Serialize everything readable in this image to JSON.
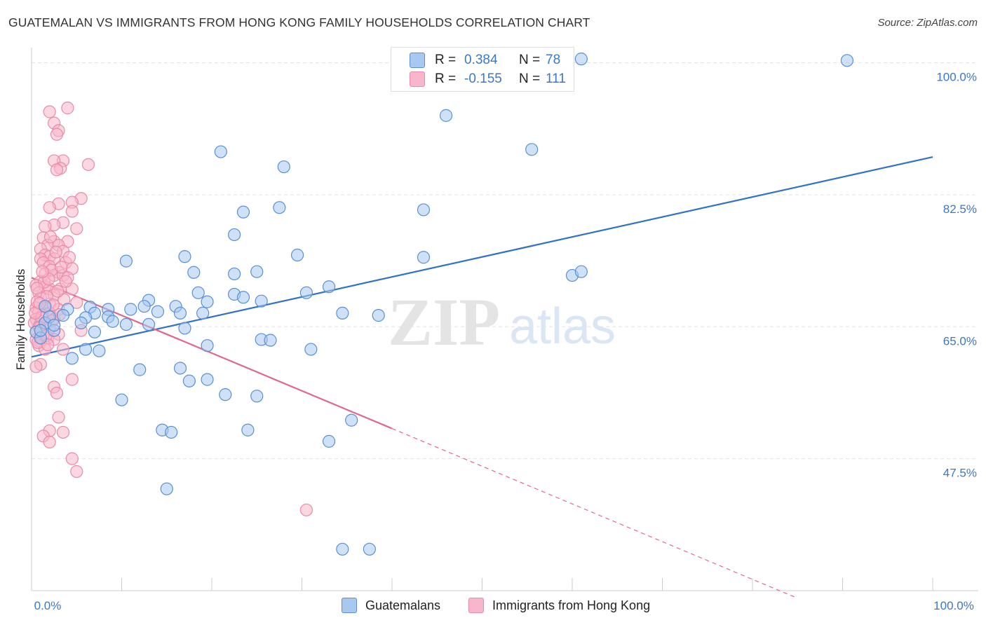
{
  "header": {
    "title": "GUATEMALAN VS IMMIGRANTS FROM HONG KONG FAMILY HOUSEHOLDS CORRELATION CHART",
    "source": "Source: ZipAtlas.com"
  },
  "watermark": {
    "zip": "ZIP",
    "atlas": "atlas"
  },
  "legend_top": {
    "rows": [
      {
        "r_label": "R =",
        "r_value": "0.384",
        "n_label": "N =",
        "n_value": "78"
      },
      {
        "r_label": "R =",
        "r_value": "-0.155",
        "n_label": "N =",
        "n_value": "111"
      }
    ]
  },
  "chart_data": {
    "type": "scatter",
    "ylabel": "Family Households",
    "xlim": [
      0,
      100
    ],
    "ylim": [
      30,
      102
    ],
    "x_tick_labels": [
      "0.0%",
      "100.0%"
    ],
    "y_ticks": [
      47.5,
      65.0,
      82.5,
      100.0
    ],
    "y_tick_labels": [
      "47.5%",
      "65.0%",
      "82.5%",
      "100.0%"
    ],
    "grid": "horizontal dashed",
    "legend_position": "bottom",
    "colors": {
      "blue_fill": "#a8c8f0",
      "blue_stroke": "#5a8fd6",
      "blue_line": "#2f72c8",
      "pink_fill": "#f7b6cb",
      "pink_stroke": "#e98aa9",
      "pink_line": "#e0678f"
    },
    "series": [
      {
        "name": "Guatemalans",
        "color": "blue",
        "trend": {
          "x": [
            0,
            100
          ],
          "y": [
            61.0,
            87.5
          ],
          "dashed_from": null
        },
        "points": [
          [
            61.0,
            100.5
          ],
          [
            90.5,
            100.3
          ],
          [
            46.0,
            93.0
          ],
          [
            55.5,
            88.5
          ],
          [
            21.0,
            88.2
          ],
          [
            28.0,
            86.2
          ],
          [
            27.5,
            80.8
          ],
          [
            23.5,
            80.2
          ],
          [
            43.5,
            80.5
          ],
          [
            22.5,
            77.2
          ],
          [
            10.5,
            73.7
          ],
          [
            17.0,
            74.3
          ],
          [
            29.5,
            74.5
          ],
          [
            43.5,
            74.2
          ],
          [
            18.0,
            72.2
          ],
          [
            22.5,
            72.0
          ],
          [
            25.0,
            72.3
          ],
          [
            60.0,
            71.8
          ],
          [
            61.0,
            72.3
          ],
          [
            33.0,
            70.3
          ],
          [
            18.5,
            69.5
          ],
          [
            22.5,
            69.3
          ],
          [
            23.5,
            68.9
          ],
          [
            30.5,
            69.5
          ],
          [
            19.5,
            68.3
          ],
          [
            25.5,
            68.4
          ],
          [
            13.0,
            68.5
          ],
          [
            16.0,
            67.7
          ],
          [
            12.5,
            67.7
          ],
          [
            6.5,
            67.6
          ],
          [
            8.5,
            67.3
          ],
          [
            11.0,
            67.3
          ],
          [
            14.0,
            67.0
          ],
          [
            4.0,
            67.3
          ],
          [
            1.5,
            67.7
          ],
          [
            16.5,
            66.8
          ],
          [
            19.0,
            66.8
          ],
          [
            38.5,
            66.5
          ],
          [
            34.5,
            66.8
          ],
          [
            7.0,
            66.8
          ],
          [
            3.5,
            66.5
          ],
          [
            6.0,
            66.2
          ],
          [
            8.5,
            66.3
          ],
          [
            9.0,
            65.7
          ],
          [
            5.5,
            65.5
          ],
          [
            10.5,
            65.3
          ],
          [
            1.5,
            65.5
          ],
          [
            2.0,
            66.3
          ],
          [
            13.0,
            65.3
          ],
          [
            17.0,
            64.8
          ],
          [
            2.5,
            64.5
          ],
          [
            0.5,
            64.3
          ],
          [
            7.0,
            64.3
          ],
          [
            1.0,
            63.5
          ],
          [
            25.5,
            63.3
          ],
          [
            26.5,
            63.2
          ],
          [
            19.5,
            62.5
          ],
          [
            31.0,
            62.0
          ],
          [
            6.0,
            62.0
          ],
          [
            7.5,
            61.8
          ],
          [
            4.5,
            60.8
          ],
          [
            12.0,
            59.3
          ],
          [
            16.5,
            59.5
          ],
          [
            17.5,
            57.8
          ],
          [
            19.5,
            58.0
          ],
          [
            10.0,
            55.3
          ],
          [
            21.5,
            56.0
          ],
          [
            25.0,
            55.8
          ],
          [
            35.5,
            52.6
          ],
          [
            14.5,
            51.3
          ],
          [
            15.5,
            51.0
          ],
          [
            24.0,
            51.3
          ],
          [
            33.0,
            49.8
          ],
          [
            15.0,
            43.5
          ],
          [
            34.5,
            35.5
          ],
          [
            37.5,
            35.5
          ],
          [
            1.0,
            64.5
          ],
          [
            2.5,
            65.2
          ]
        ]
      },
      {
        "name": "Immigrants from Hong Kong",
        "color": "pink",
        "trend": {
          "x": [
            0,
            40
          ],
          "y": [
            71.5,
            51.5
          ],
          "dashed_from": 40,
          "dashed_to": [
            85,
            29
          ]
        },
        "points": [
          [
            4.0,
            94.0
          ],
          [
            2.0,
            93.5
          ],
          [
            2.5,
            92.0
          ],
          [
            3.0,
            91.0
          ],
          [
            2.8,
            90.5
          ],
          [
            3.5,
            87.0
          ],
          [
            2.5,
            87.0
          ],
          [
            6.3,
            86.5
          ],
          [
            3.2,
            86.0
          ],
          [
            2.8,
            85.8
          ],
          [
            5.5,
            82.0
          ],
          [
            4.5,
            81.5
          ],
          [
            3.0,
            81.3
          ],
          [
            2.0,
            80.8
          ],
          [
            4.5,
            80.3
          ],
          [
            3.5,
            78.8
          ],
          [
            2.5,
            78.5
          ],
          [
            1.5,
            78.3
          ],
          [
            5.0,
            78.0
          ],
          [
            1.3,
            76.8
          ],
          [
            2.5,
            76.3
          ],
          [
            4.0,
            76.3
          ],
          [
            1.8,
            75.8
          ],
          [
            3.0,
            75.8
          ],
          [
            1.0,
            75.3
          ],
          [
            3.5,
            75.0
          ],
          [
            1.5,
            74.5
          ],
          [
            2.0,
            74.3
          ],
          [
            2.5,
            74.0
          ],
          [
            1.0,
            74.0
          ],
          [
            1.3,
            73.5
          ],
          [
            3.8,
            73.5
          ],
          [
            2.0,
            73.0
          ],
          [
            4.5,
            72.7
          ],
          [
            3.0,
            72.2
          ],
          [
            1.5,
            72.0
          ],
          [
            2.5,
            71.8
          ],
          [
            3.5,
            71.8
          ],
          [
            4.0,
            71.5
          ],
          [
            1.0,
            71.0
          ],
          [
            0.5,
            70.5
          ],
          [
            1.5,
            70.3
          ],
          [
            2.0,
            70.0
          ],
          [
            3.2,
            70.0
          ],
          [
            4.5,
            70.0
          ],
          [
            0.8,
            69.5
          ],
          [
            2.5,
            69.2
          ],
          [
            1.0,
            68.8
          ],
          [
            5.0,
            68.2
          ],
          [
            2.0,
            68.0
          ],
          [
            0.5,
            67.5
          ],
          [
            1.5,
            67.5
          ],
          [
            3.0,
            67.3
          ],
          [
            0.8,
            67.0
          ],
          [
            2.0,
            66.8
          ],
          [
            1.2,
            66.5
          ],
          [
            0.5,
            66.0
          ],
          [
            2.5,
            66.0
          ],
          [
            1.0,
            65.7
          ],
          [
            0.3,
            65.5
          ],
          [
            1.5,
            65.3
          ],
          [
            0.8,
            65.0
          ],
          [
            2.0,
            64.7
          ],
          [
            0.5,
            64.3
          ],
          [
            1.3,
            64.0
          ],
          [
            3.0,
            64.0
          ],
          [
            1.8,
            63.5
          ],
          [
            0.5,
            63.3
          ],
          [
            2.5,
            63.3
          ],
          [
            1.0,
            63.0
          ],
          [
            0.8,
            62.5
          ],
          [
            1.5,
            62.0
          ],
          [
            3.5,
            62.0
          ],
          [
            1.0,
            60.0
          ],
          [
            0.5,
            59.7
          ],
          [
            4.5,
            58.0
          ],
          [
            2.5,
            57.0
          ],
          [
            2.8,
            56.2
          ],
          [
            3.0,
            53.0
          ],
          [
            2.0,
            51.2
          ],
          [
            3.5,
            51.0
          ],
          [
            1.3,
            50.5
          ],
          [
            2.0,
            49.7
          ],
          [
            4.5,
            47.5
          ],
          [
            5.0,
            45.8
          ],
          [
            30.5,
            40.7
          ],
          [
            2.2,
            72.5
          ],
          [
            1.7,
            69.0
          ],
          [
            3.8,
            71.0
          ],
          [
            0.6,
            68.3
          ],
          [
            1.1,
            66.2
          ],
          [
            2.4,
            67.9
          ],
          [
            0.9,
            64.9
          ],
          [
            3.3,
            72.9
          ],
          [
            2.7,
            74.9
          ],
          [
            1.4,
            70.9
          ],
          [
            0.7,
            62.9
          ],
          [
            1.9,
            71.3
          ],
          [
            2.1,
            76.9
          ],
          [
            3.6,
            68.6
          ],
          [
            0.4,
            66.8
          ],
          [
            1.6,
            63.8
          ],
          [
            2.9,
            69.7
          ],
          [
            1.2,
            72.3
          ],
          [
            0.6,
            70.1
          ],
          [
            4.2,
            74.2
          ],
          [
            2.3,
            65.8
          ],
          [
            1.8,
            62.6
          ],
          [
            3.1,
            66.6
          ],
          [
            0.9,
            68.1
          ],
          [
            5.5,
            64.5
          ]
        ]
      }
    ]
  }
}
